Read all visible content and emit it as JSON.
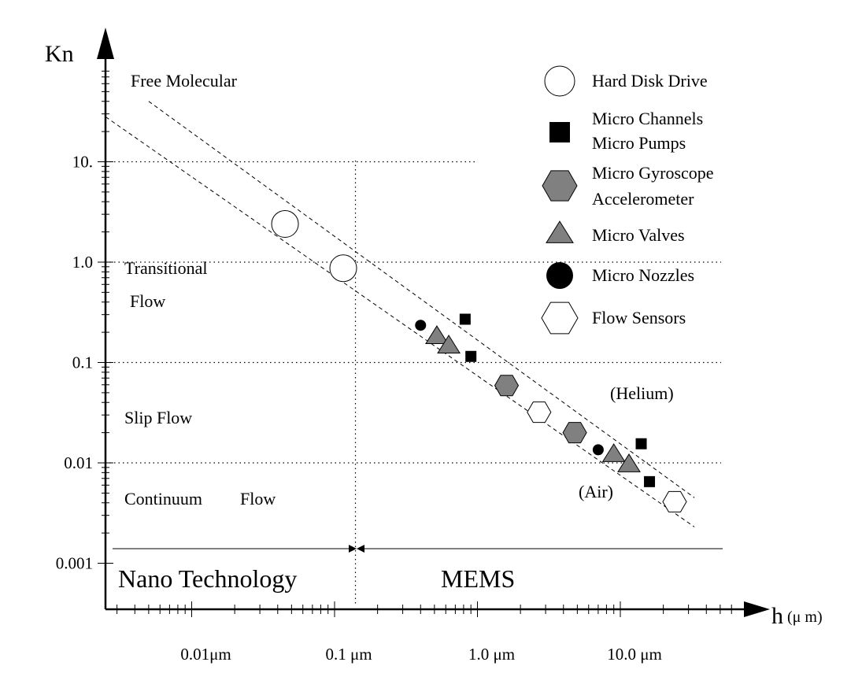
{
  "chart_data": {
    "type": "scatter",
    "title": "",
    "xlabel": "h",
    "xlabel_unit": "(μ m)",
    "ylabel": "Kn",
    "x_scale": "log",
    "y_scale": "log",
    "xlim": [
      0.003,
      40
    ],
    "ylim": [
      0.0006,
      60
    ],
    "x_tick_labels": [
      {
        "value": 0.01,
        "label": "0.01μm"
      },
      {
        "value": 0.1,
        "label": "0.1 μm"
      },
      {
        "value": 1.0,
        "label": "1.0 μm"
      },
      {
        "value": 10.0,
        "label": "10.0 μm"
      }
    ],
    "y_tick_labels": [
      {
        "value": 10,
        "label": "10."
      },
      {
        "value": 1,
        "label": "1.0"
      },
      {
        "value": 0.1,
        "label": "0.1"
      },
      {
        "value": 0.01,
        "label": "0.01"
      },
      {
        "value": 0.001,
        "label": "0.001"
      }
    ],
    "regions": {
      "free_molecular": "Free Molecular",
      "transitional_line1": "Transitional",
      "transitional_line2": "Flow",
      "slip": "Slip Flow",
      "continuum_a": "Continuum",
      "continuum_b": "Flow"
    },
    "bands": {
      "nano": "Nano Technology",
      "mems": "MEMS",
      "boundary_h": 0.14
    },
    "lines": [
      {
        "label": "(Helium)",
        "x": [
          0.005,
          33
        ],
        "y": [
          40,
          0.0045
        ]
      },
      {
        "label": "(Air)",
        "x": [
          0.0025,
          33
        ],
        "y": [
          28,
          0.0023
        ]
      }
    ],
    "legend": {
      "position": "top-right",
      "entries": [
        {
          "label": "Hard Disk Drive",
          "marker": "circle-open"
        },
        {
          "label": "Micro Channels",
          "label2": "Micro Pumps",
          "marker": "square-filled"
        },
        {
          "label": "Micro Gyroscope",
          "label2": "Accelerometer",
          "marker": "hexagon-gray"
        },
        {
          "label": "Micro Valves",
          "marker": "triangle-gray"
        },
        {
          "label": "Micro Nozzles",
          "marker": "circle-filled"
        },
        {
          "label": "Flow Sensors",
          "marker": "hexagon-open"
        }
      ]
    },
    "series": [
      {
        "name": "Hard Disk Drive",
        "marker": "circle-open",
        "size": 17,
        "points": [
          [
            0.045,
            2.4
          ],
          [
            0.115,
            0.87
          ]
        ]
      },
      {
        "name": "Micro Channels Micro Pumps",
        "marker": "square-filled",
        "size": 7,
        "points": [
          [
            0.82,
            0.27
          ],
          [
            0.9,
            0.115
          ],
          [
            14,
            0.0155
          ],
          [
            16,
            0.0065
          ]
        ]
      },
      {
        "name": "Micro Gyroscope Accelerometer",
        "marker": "hexagon-gray",
        "size": 15,
        "points": [
          [
            1.6,
            0.059
          ],
          [
            4.8,
            0.02
          ]
        ]
      },
      {
        "name": "Micro Valves",
        "marker": "triangle-gray",
        "size": 14,
        "points": [
          [
            0.52,
            0.18
          ],
          [
            0.63,
            0.145
          ],
          [
            9,
            0.012
          ],
          [
            11.5,
            0.0095
          ]
        ]
      },
      {
        "name": "Micro Nozzles",
        "marker": "circle-filled",
        "size": 7,
        "points": [
          [
            0.4,
            0.235
          ],
          [
            7,
            0.0135
          ]
        ]
      },
      {
        "name": "Flow Sensors",
        "marker": "hexagon-open",
        "size": 15,
        "points": [
          [
            2.7,
            0.032
          ],
          [
            24,
            0.0041
          ]
        ]
      }
    ],
    "grid": "dotted at decades"
  }
}
